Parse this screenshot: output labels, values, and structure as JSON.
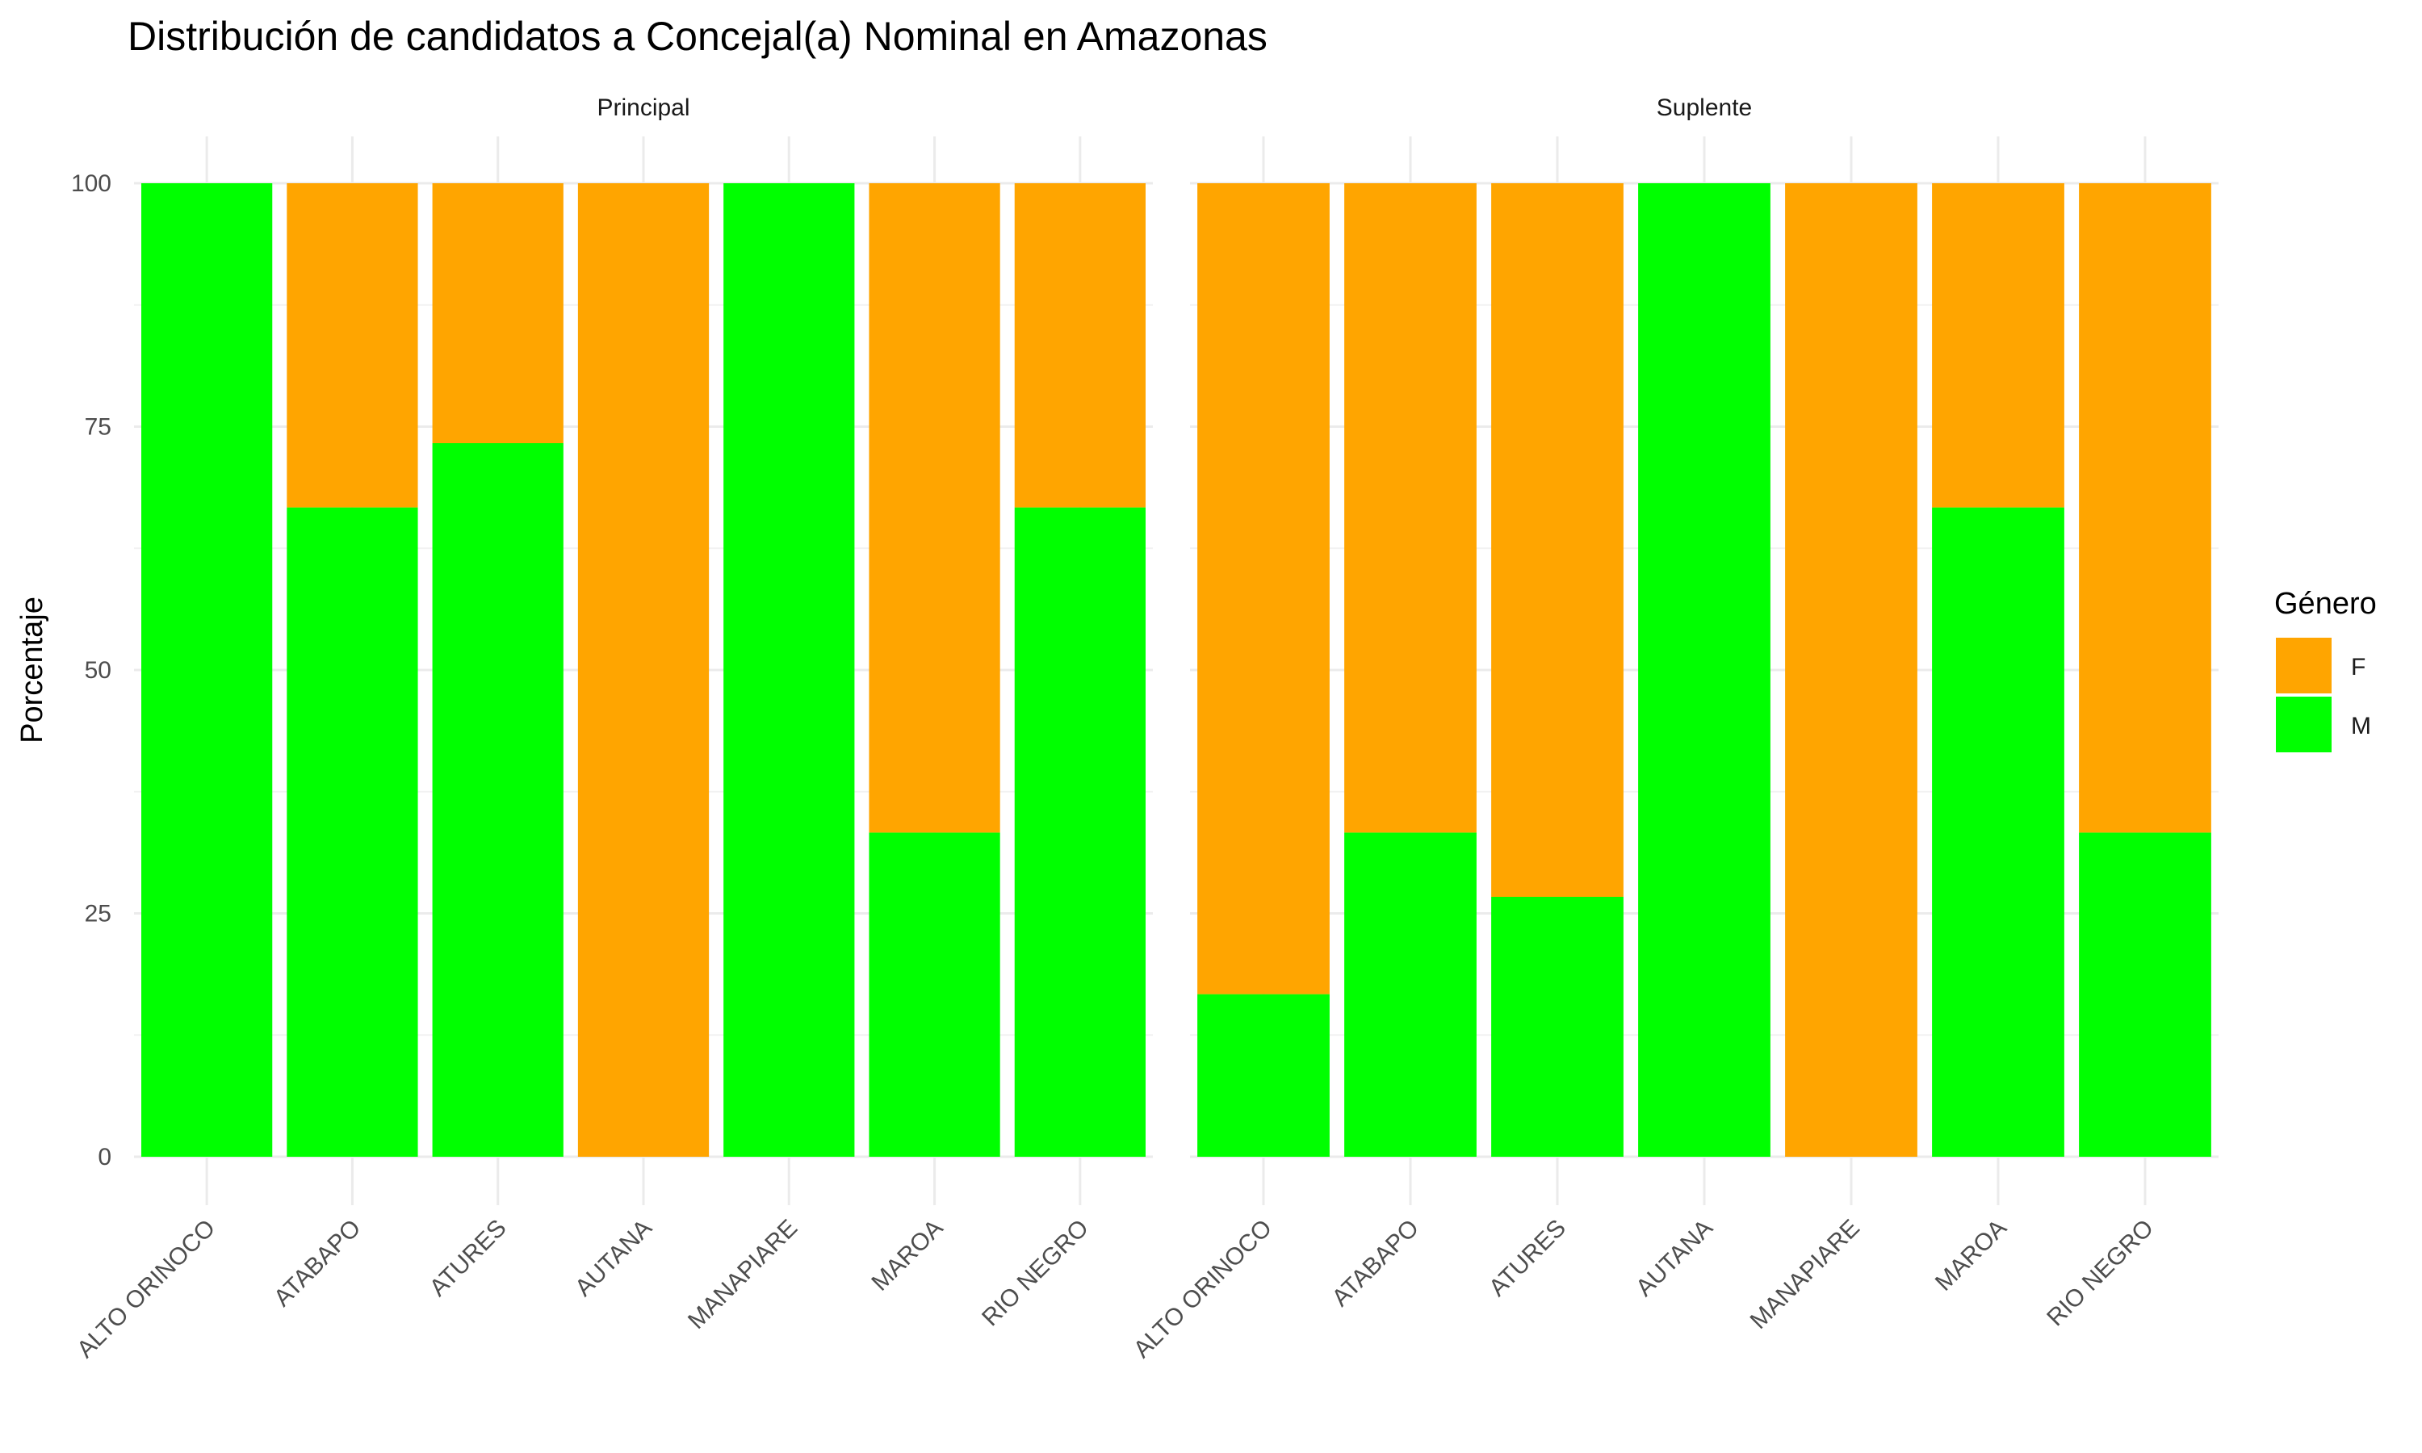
{
  "chart_data": {
    "type": "bar",
    "stacked": true,
    "title": "Distribución de candidatos a Concejal(a) Nominal en Amazonas",
    "ylabel": "Porcentaje",
    "xlabel": "",
    "ylim": [
      0,
      100
    ],
    "yticks": [
      "0",
      "25",
      "50",
      "75",
      "100"
    ],
    "grid": true,
    "categories": [
      "ALTO ORINOCO",
      "ATABAPO",
      "ATURES",
      "AUTANA",
      "MANAPIARE",
      "MAROA",
      "RIO NEGRO"
    ],
    "legend": {
      "title": "Género",
      "position": "right",
      "entries": [
        {
          "label": "F",
          "color": "#FFA500"
        },
        {
          "label": "M",
          "color": "#00FF00"
        }
      ]
    },
    "panels": [
      {
        "name": "Principal",
        "series": [
          {
            "name": "M",
            "values": [
              100,
              66.7,
              73.3,
              0,
              100,
              33.3,
              66.7
            ]
          },
          {
            "name": "F",
            "values": [
              0,
              33.3,
              26.7,
              100,
              0,
              66.7,
              33.3
            ]
          }
        ]
      },
      {
        "name": "Suplente",
        "series": [
          {
            "name": "M",
            "values": [
              16.7,
              33.3,
              26.7,
              100,
              0,
              66.7,
              33.3
            ]
          },
          {
            "name": "F",
            "values": [
              83.3,
              66.7,
              73.3,
              0,
              100,
              33.3,
              66.7
            ]
          }
        ]
      }
    ]
  }
}
